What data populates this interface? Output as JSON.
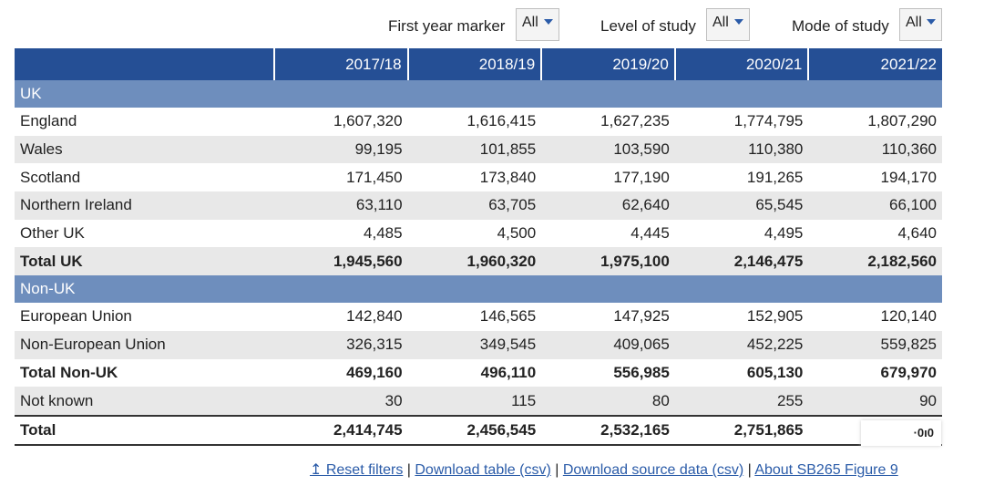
{
  "filters": {
    "first_year": {
      "label": "First year marker",
      "value": "All"
    },
    "level": {
      "label": "Level of study",
      "value": "All"
    },
    "mode": {
      "label": "Mode of study",
      "value": "All"
    }
  },
  "table": {
    "years": [
      "2017/18",
      "2018/19",
      "2019/20",
      "2020/21",
      "2021/22"
    ],
    "rows": [
      {
        "kind": "section",
        "label": "UK"
      },
      {
        "kind": "data",
        "label": "England",
        "values": [
          "1,607,320",
          "1,616,415",
          "1,627,235",
          "1,774,795",
          "1,807,290"
        ]
      },
      {
        "kind": "data",
        "label": "Wales",
        "values": [
          "99,195",
          "101,855",
          "103,590",
          "110,380",
          "110,360"
        ]
      },
      {
        "kind": "data",
        "label": "Scotland",
        "values": [
          "171,450",
          "173,840",
          "177,190",
          "191,265",
          "194,170"
        ]
      },
      {
        "kind": "data",
        "label": "Northern Ireland",
        "values": [
          "63,110",
          "63,705",
          "62,640",
          "65,545",
          "66,100"
        ]
      },
      {
        "kind": "data",
        "label": "Other UK",
        "values": [
          "4,485",
          "4,500",
          "4,445",
          "4,495",
          "4,640"
        ]
      },
      {
        "kind": "total",
        "label": "Total UK",
        "values": [
          "1,945,560",
          "1,960,320",
          "1,975,100",
          "2,146,475",
          "2,182,560"
        ]
      },
      {
        "kind": "section",
        "label": "Non-UK"
      },
      {
        "kind": "data",
        "label": "European Union",
        "values": [
          "142,840",
          "146,565",
          "147,925",
          "152,905",
          "120,140"
        ]
      },
      {
        "kind": "data",
        "label": "Non-European Union",
        "values": [
          "326,315",
          "349,545",
          "409,065",
          "452,225",
          "559,825"
        ]
      },
      {
        "kind": "total",
        "label": "Total Non-UK",
        "values": [
          "469,160",
          "496,110",
          "556,985",
          "605,130",
          "679,970"
        ]
      },
      {
        "kind": "data",
        "label": "Not known",
        "values": [
          "30",
          "115",
          "80",
          "255",
          "90"
        ]
      },
      {
        "kind": "grand",
        "label": "Total",
        "values": [
          "2,414,745",
          "2,456,545",
          "2,532,165",
          "2,751,865",
          ""
        ]
      }
    ]
  },
  "overlay_text": "·0ı0",
  "links": {
    "reset": "↥ Reset filters",
    "download_table": "Download table (csv)",
    "download_source": "Download source data (csv)",
    "about": "About SB265 Figure 9",
    "separator": " | "
  }
}
